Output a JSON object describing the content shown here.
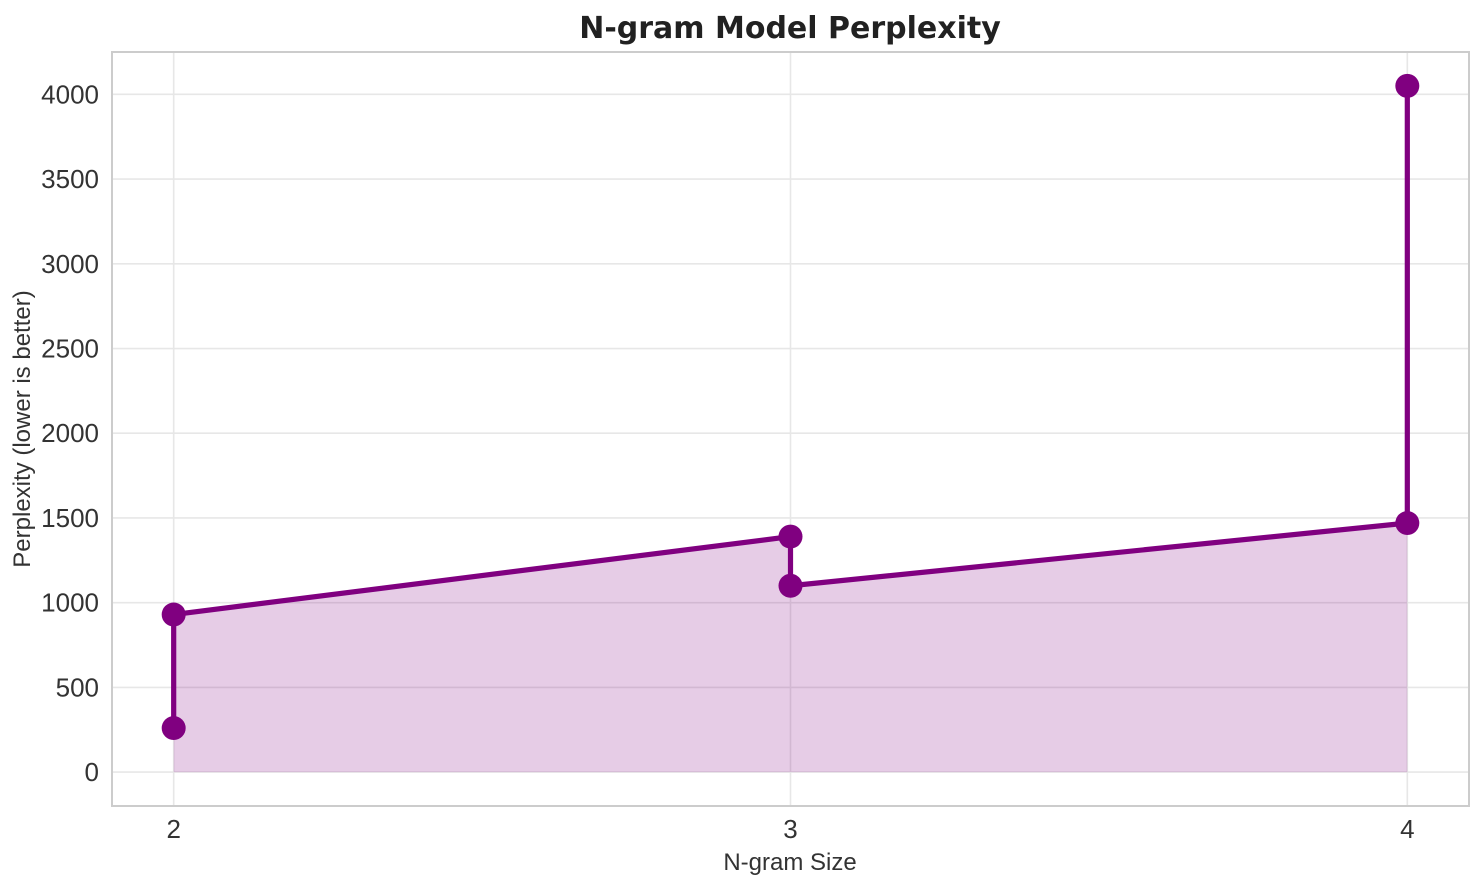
{
  "chart_data": {
    "type": "line",
    "title": "N-gram Model Perplexity",
    "xlabel": "N-gram Size",
    "ylabel": "Perplexity (lower is better)",
    "points": [
      {
        "x": 2,
        "y": 260
      },
      {
        "x": 2,
        "y": 930
      },
      {
        "x": 3,
        "y": 1390
      },
      {
        "x": 3,
        "y": 1100
      },
      {
        "x": 4,
        "y": 1470
      },
      {
        "x": 4,
        "y": 4050
      }
    ],
    "xticks": [
      "2",
      "3",
      "4"
    ],
    "xtick_values": [
      2,
      3,
      4
    ],
    "yticks": [
      "0",
      "500",
      "1000",
      "1500",
      "2000",
      "2500",
      "3000",
      "3500",
      "4000"
    ],
    "ytick_values": [
      0,
      500,
      1000,
      1500,
      2000,
      2500,
      3000,
      3500,
      4000
    ],
    "xlim": [
      1.9,
      4.1
    ],
    "ylim": [
      -200,
      4250
    ],
    "grid": true,
    "legend": null,
    "fill_baseline": 0,
    "colors": {
      "line": "#800080",
      "marker": "#800080",
      "area_fill": "#800080",
      "area_opacity": 0.2,
      "grid": "#e7e7e7",
      "spine": "#cccccc",
      "title_text": "#212121",
      "tick_text": "#333333"
    },
    "marker_radius": 12,
    "line_width": 5.2
  }
}
